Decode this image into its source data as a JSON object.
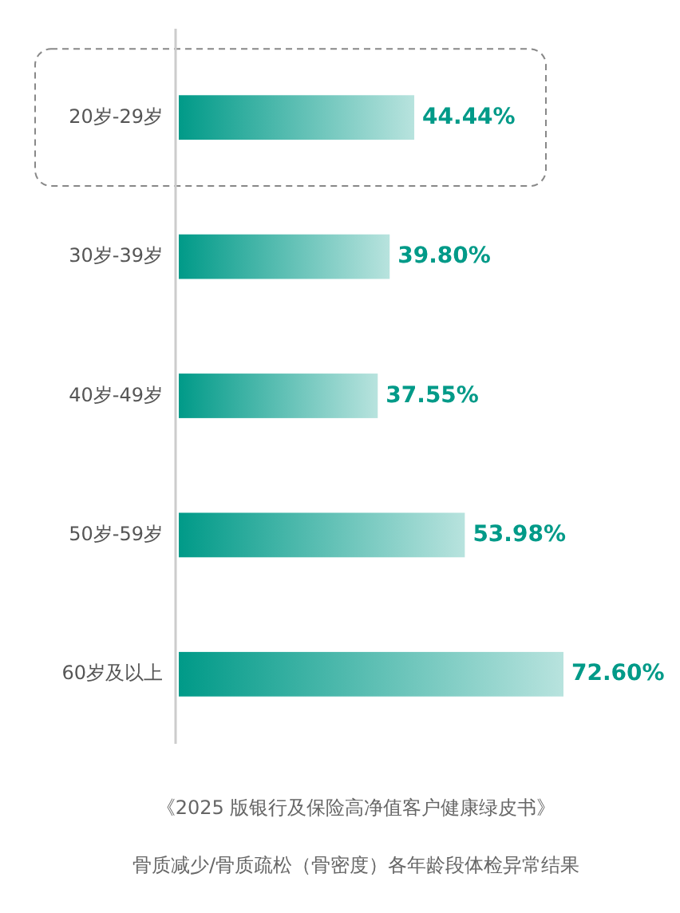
{
  "chart_data": {
    "type": "bar",
    "orientation": "horizontal",
    "title": "《2025 版银行及保险高净值客户健康绿皮书》",
    "subtitle": "骨质减少/骨质疏松（骨密度）各年龄段体检异常结果",
    "categories": [
      "20岁-29岁",
      "30岁-39岁",
      "40岁-49岁",
      "50岁-59岁",
      "60岁及以上"
    ],
    "values": [
      44.44,
      39.8,
      37.55,
      53.98,
      72.6
    ],
    "value_labels": [
      "44.44%",
      "39.80%",
      "37.55%",
      "53.98%",
      "72.60%"
    ],
    "color": "#009a88"
  }
}
